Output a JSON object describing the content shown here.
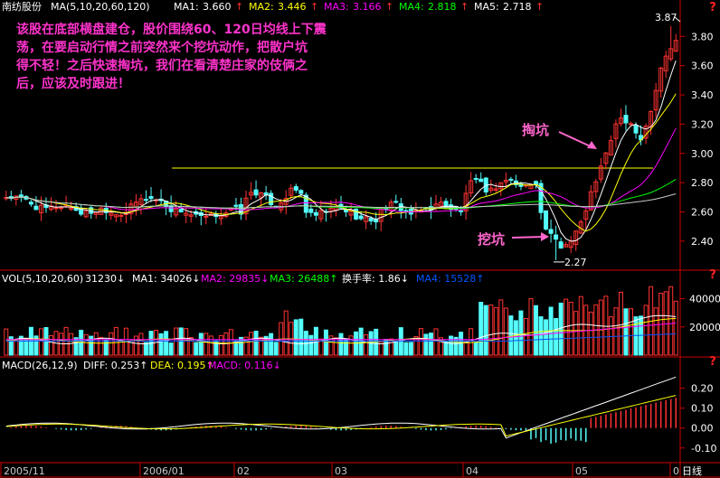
{
  "stock_name": "南纺股份",
  "main_panel": {
    "ma_label": "MA(5,10,20,60,120)",
    "ma_values": [
      {
        "label": "MA1:",
        "value": "3.660",
        "arrow": "↑",
        "color": "#ffffff"
      },
      {
        "label": "MA2:",
        "value": "3.446",
        "arrow": "↑",
        "color": "#ffff00"
      },
      {
        "label": "MA3:",
        "value": "3.166",
        "arrow": "↑",
        "color": "#ff00ff"
      },
      {
        "label": "MA4:",
        "value": "2.818",
        "arrow": "↑",
        "color": "#00ff00"
      },
      {
        "label": "MA5:",
        "value": "2.718",
        "arrow": "↑",
        "color": "#ffffff"
      }
    ],
    "y_ticks": [
      "3.80",
      "3.60",
      "3.40",
      "3.20",
      "3.00",
      "2.80",
      "2.60",
      "2.40"
    ],
    "annotation_lines": [
      "该股在底部横盘建仓，股价围绕60、120日均线上下震",
      "荡，在要启动行情之前突然来个挖坑动作，把散户坑",
      "得不轻！之后快速掏坑，我们在看清楚庄家的伎俩之",
      "后，应该及时跟进！"
    ],
    "label_taokeng": "掏坑",
    "label_wakeng": "挖坑",
    "high_label": "3.87",
    "low_label": "2.27",
    "help_mark": "?"
  },
  "vol_panel": {
    "items": [
      {
        "text": "VOL(5,10,20,60)",
        "color": "#ffffff"
      },
      {
        "text": "31230↓",
        "color": "#ffffff"
      },
      {
        "text": "MA1: 34026↓",
        "color": "#ffffff"
      },
      {
        "text": "MA2: 29835↓",
        "color": "#ff00ff"
      },
      {
        "text": "MA3: 26488↑",
        "color": "#00ff00"
      },
      {
        "text": "换手率: 1.86↓",
        "color": "#ffffff"
      },
      {
        "text": "MA4: 15528↑",
        "color": "#0055ff"
      }
    ],
    "y_ticks": [
      "40000",
      "20000"
    ],
    "help_mark": "?"
  },
  "macd_panel": {
    "items": [
      {
        "text": "MACD(26,12,9)",
        "color": "#ffffff"
      },
      {
        "text": "DIFF: 0.253↑",
        "color": "#ffffff"
      },
      {
        "text": "DEA: 0.195↑",
        "color": "#ffff00"
      },
      {
        "text": "MACD: 0.116↓",
        "color": "#ff00ff"
      }
    ],
    "y_ticks": [
      "0.20",
      "0.10",
      "0.00",
      "-0.10"
    ],
    "help_mark": "?"
  },
  "date_labels": [
    "2005/11",
    "2006/01",
    "02",
    "03",
    "04",
    "05",
    "0"
  ],
  "period_label": "日线",
  "chart_data": {
    "type": "candlestick",
    "title": "南纺股份",
    "period": "日线",
    "price_ylim": [
      2.22,
      3.95
    ],
    "levels": {
      "high": 3.87,
      "low": 2.27,
      "resistance": 2.9
    },
    "volume_ylim": [
      0,
      50000
    ],
    "macd_ylim": [
      -0.16,
      0.28
    ],
    "colors": {
      "up": "#ff3232",
      "down": "#54fcfc",
      "ma1": "#ffffff",
      "ma2": "#ffff00",
      "ma3": "#ff00ff",
      "ma4": "#00ff00",
      "ma5": "#ffffff"
    }
  }
}
